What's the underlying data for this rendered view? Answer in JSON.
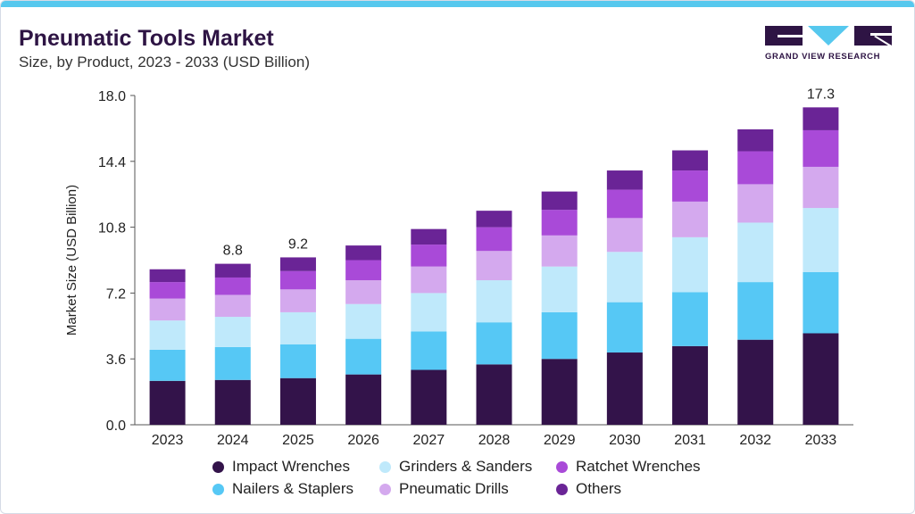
{
  "header": {
    "title": "Pneumatic Tools Market",
    "subtitle": "Size, by Product, 2023 - 2033 (USD Billion)"
  },
  "logo": {
    "text": "GRAND VIEW RESEARCH",
    "colors": {
      "dark": "#2e1444",
      "accent": "#56c8ee"
    }
  },
  "chart_data": {
    "type": "bar",
    "stacked": true,
    "title": "",
    "xlabel": "",
    "ylabel": "Market Size (USD Billion)",
    "ylim": [
      0,
      18
    ],
    "yticks": [
      "0.0",
      "3.6",
      "7.2",
      "10.8",
      "14.4",
      "18.0"
    ],
    "grid": false,
    "legend_position": "bottom",
    "categories": [
      "2023",
      "2024",
      "2025",
      "2026",
      "2027",
      "2028",
      "2029",
      "2030",
      "2031",
      "2032",
      "2033"
    ],
    "series": [
      {
        "name": "Impact Wrenches",
        "color": "#33134a",
        "values": [
          2.4,
          2.45,
          2.55,
          2.75,
          3.0,
          3.3,
          3.6,
          3.95,
          4.3,
          4.65,
          5.0
        ]
      },
      {
        "name": "Nailers & Staplers",
        "color": "#56c8f5",
        "values": [
          1.7,
          1.8,
          1.85,
          1.95,
          2.1,
          2.3,
          2.55,
          2.75,
          2.95,
          3.15,
          3.35
        ]
      },
      {
        "name": "Grinders & Sanders",
        "color": "#bfe9fb",
        "values": [
          1.6,
          1.65,
          1.75,
          1.9,
          2.1,
          2.3,
          2.5,
          2.75,
          3.0,
          3.25,
          3.5
        ]
      },
      {
        "name": "Pneumatic Drills",
        "color": "#d4a9ee",
        "values": [
          1.2,
          1.2,
          1.25,
          1.3,
          1.45,
          1.6,
          1.7,
          1.85,
          1.95,
          2.1,
          2.25
        ]
      },
      {
        "name": "Ratchet Wrenches",
        "color": "#a94ad8",
        "values": [
          0.9,
          0.95,
          1.0,
          1.1,
          1.2,
          1.3,
          1.4,
          1.55,
          1.7,
          1.8,
          2.0
        ]
      },
      {
        "name": "Others",
        "color": "#6a2496",
        "values": [
          0.7,
          0.75,
          0.75,
          0.8,
          0.85,
          0.9,
          1.0,
          1.05,
          1.1,
          1.2,
          1.25
        ]
      }
    ],
    "data_labels": [
      {
        "category": "2024",
        "text": "8.8"
      },
      {
        "category": "2025",
        "text": "9.2"
      },
      {
        "category": "2033",
        "text": "17.3"
      }
    ]
  }
}
